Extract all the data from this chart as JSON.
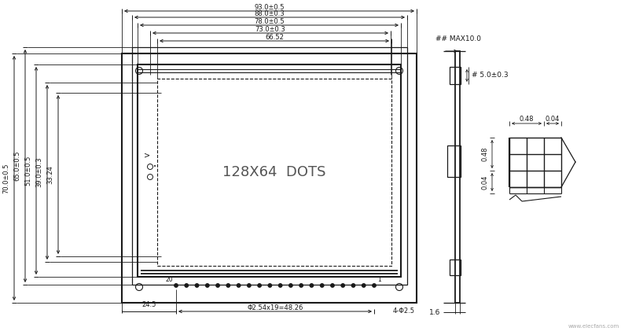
{
  "bg_color": "#ffffff",
  "line_color": "#1a1a1a",
  "dots_label": "128X64  DOTS",
  "top_dims": [
    "93.0±0.5",
    "88.0±0.3",
    "78.0±0.5",
    "73.0±0.3",
    "66.52"
  ],
  "left_dims": [
    "70.0±0.5",
    "65.0±0.5",
    "51.0±0.5",
    "39.0±0.3",
    "33.24"
  ],
  "bottom_labels": [
    "24.5",
    "Φ2.54x19=48.26",
    "4-Φ2.5"
  ],
  "pin_labels": [
    "20",
    "1"
  ],
  "side_label_max": "## MAX10.0",
  "side_label_thick": "# 5.0±0.3",
  "side_label_pcb": "1.6",
  "connector_dims": [
    "0.48",
    "0.04",
    "0.48",
    "0.04"
  ],
  "watermark": "www.elecfans.com"
}
